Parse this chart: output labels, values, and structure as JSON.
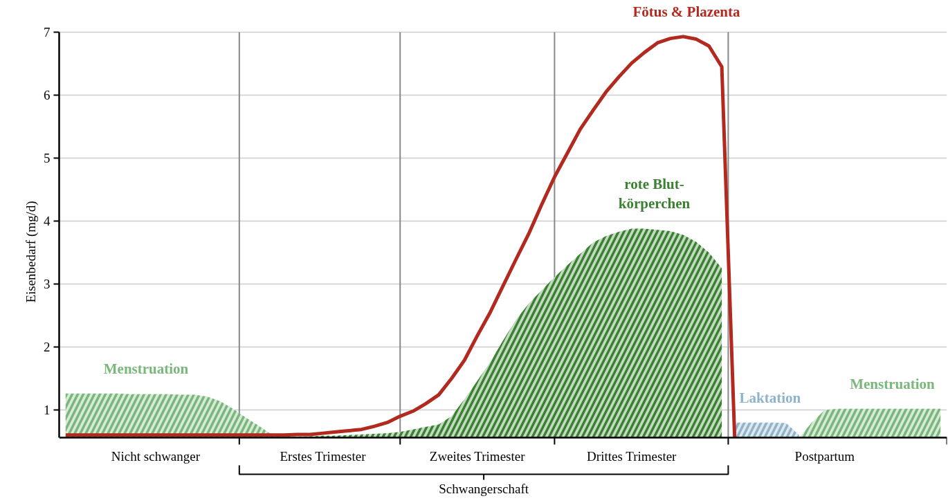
{
  "chart_data": {
    "type": "area",
    "ylabel": "Eisenbedarf (mg/d)",
    "categories": [
      null,
      null,
      null,
      null,
      null,
      null,
      null,
      "Nicht schwanger",
      null,
      null,
      null,
      null,
      null,
      null,
      null,
      null,
      null,
      null,
      null,
      null,
      "Erstes Trimester",
      null,
      null,
      null,
      null,
      null,
      null,
      null,
      null,
      null,
      null,
      null,
      "Zweites Trimester",
      null,
      null,
      null,
      null,
      null,
      null,
      null,
      null,
      null,
      null,
      null,
      "Drittes Trimester",
      null,
      null,
      null,
      null,
      null,
      null,
      null,
      null,
      null,
      null,
      null,
      null,
      null,
      null,
      "Postpartum",
      null,
      null,
      null,
      null,
      null,
      null,
      null,
      null,
      null
    ],
    "ylim": [
      0.56,
      7
    ],
    "yticks": [
      1,
      2,
      3,
      4,
      5,
      6,
      7
    ],
    "grid": "xy",
    "annotations": [
      "Schwangerschaft"
    ],
    "series": [
      {
        "name": "Menstruation",
        "color": "#7ab77a",
        "values": [
          1.26,
          1.26,
          1.26,
          1.26,
          1.26,
          1.25,
          1.25,
          1.25,
          1.25,
          1.24,
          1.24,
          1.21,
          1.14,
          1.02,
          0.88,
          0.75,
          0.61,
          0.56,
          null,
          null,
          null,
          null,
          null,
          null,
          null,
          null,
          null,
          null,
          null,
          null,
          null,
          null,
          null,
          null,
          null,
          null,
          null,
          null,
          null,
          null,
          null,
          null,
          null,
          null,
          null,
          null,
          null,
          null,
          null,
          null,
          null,
          null,
          null,
          null,
          null,
          null,
          null,
          null,
          null,
          null,
          null,
          null,
          null,
          null,
          null,
          null,
          null,
          null,
          null
        ]
      },
      {
        "name": "rote Blut-\nkörperchen",
        "color": "#3b8132",
        "values": [
          null,
          null,
          null,
          null,
          null,
          null,
          null,
          null,
          null,
          null,
          null,
          null,
          null,
          null,
          null,
          null,
          null,
          0.57,
          0.57,
          0.58,
          0.59,
          0.59,
          0.6,
          0.61,
          0.62,
          0.63,
          0.65,
          0.69,
          0.73,
          0.77,
          0.9,
          1.17,
          1.46,
          1.76,
          2.1,
          2.43,
          2.69,
          2.9,
          3.11,
          3.3,
          3.48,
          3.66,
          3.76,
          3.83,
          3.88,
          3.88,
          3.86,
          3.84,
          3.78,
          3.67,
          3.5,
          3.25,
          null,
          null,
          null,
          null,
          null,
          null,
          null,
          null,
          null,
          null,
          null,
          null,
          null,
          null,
          null,
          null,
          null
        ]
      },
      {
        "name": "Laktation",
        "color": "#8fb3c9",
        "values": [
          null,
          null,
          null,
          null,
          null,
          null,
          null,
          null,
          null,
          null,
          null,
          null,
          null,
          null,
          null,
          null,
          null,
          null,
          null,
          null,
          null,
          null,
          null,
          null,
          null,
          null,
          null,
          null,
          null,
          null,
          null,
          null,
          null,
          null,
          null,
          null,
          null,
          null,
          null,
          null,
          null,
          null,
          null,
          null,
          null,
          null,
          null,
          null,
          null,
          null,
          null,
          null,
          0.8,
          0.8,
          0.8,
          0.8,
          0.79,
          0.6,
          null,
          null,
          null,
          null,
          null,
          null,
          null,
          null,
          null,
          null,
          null
        ]
      },
      {
        "name": "Menstruation",
        "color": "#7ab77a",
        "values": [
          null,
          null,
          null,
          null,
          null,
          null,
          null,
          null,
          null,
          null,
          null,
          null,
          null,
          null,
          null,
          null,
          null,
          null,
          null,
          null,
          null,
          null,
          null,
          null,
          null,
          null,
          null,
          null,
          null,
          null,
          null,
          null,
          null,
          null,
          null,
          null,
          null,
          null,
          null,
          null,
          null,
          null,
          null,
          null,
          null,
          null,
          null,
          null,
          null,
          null,
          null,
          null,
          null,
          null,
          null,
          null,
          null,
          0.56,
          0.8,
          1.0,
          1.02,
          1.02,
          1.02,
          1.02,
          1.02,
          1.02,
          1.02,
          1.02,
          1.02
        ]
      },
      {
        "name": "Fötus & Plazenta",
        "type": "line",
        "color": "#b22a1f",
        "values": [
          0.6,
          0.6,
          0.6,
          0.6,
          0.6,
          0.6,
          0.6,
          0.6,
          0.6,
          0.6,
          0.6,
          0.6,
          0.6,
          0.6,
          0.6,
          0.6,
          0.6,
          0.6,
          0.61,
          0.61,
          0.63,
          0.65,
          0.67,
          0.69,
          0.74,
          0.8,
          0.9,
          0.98,
          1.1,
          1.24,
          1.5,
          1.79,
          2.18,
          2.55,
          2.97,
          3.39,
          3.8,
          4.26,
          4.7,
          5.08,
          5.46,
          5.76,
          6.05,
          6.29,
          6.51,
          6.68,
          6.83,
          6.9,
          6.93,
          6.89,
          6.78,
          6.45,
          0.56,
          null,
          null,
          null,
          null,
          null,
          null,
          null,
          null,
          null,
          null,
          null,
          null,
          null,
          null,
          null,
          null
        ]
      }
    ]
  }
}
